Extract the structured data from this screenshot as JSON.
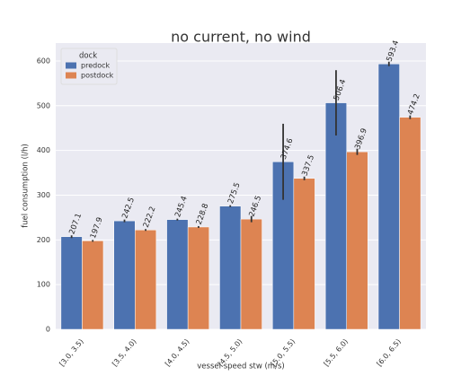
{
  "chart_data": {
    "type": "bar",
    "title": "no current, no wind",
    "x_label": "vessel speed stw (m/s)",
    "y_label": "fuel consumption (l/h)",
    "categories": [
      "[3.0, 3.5)",
      "[3.5, 4.0)",
      "[4.0, 4.5)",
      "[4.5, 5.0)",
      "[5.0, 5.5)",
      "[5.5, 6.0)",
      "[6.0, 6.5)"
    ],
    "legend_title": "dock",
    "legend_position": "upper left",
    "series": [
      {
        "name": "predock",
        "color": "#4c72b0",
        "values": [
          207.1,
          242.5,
          245.4,
          275.5,
          374.6,
          506.4,
          593.4
        ],
        "errors": [
          3,
          3,
          2,
          2,
          85,
          73,
          5
        ]
      },
      {
        "name": "postdock",
        "color": "#dd8452",
        "values": [
          197.9,
          222.2,
          228.8,
          246.5,
          337.5,
          396.9,
          474.2
        ],
        "errors": [
          2,
          2,
          2,
          7,
          4,
          7,
          4
        ]
      }
    ],
    "ylim": [
      0,
      640
    ],
    "yticks": [
      0,
      100,
      200,
      300,
      400,
      500,
      600
    ],
    "grid": true
  }
}
